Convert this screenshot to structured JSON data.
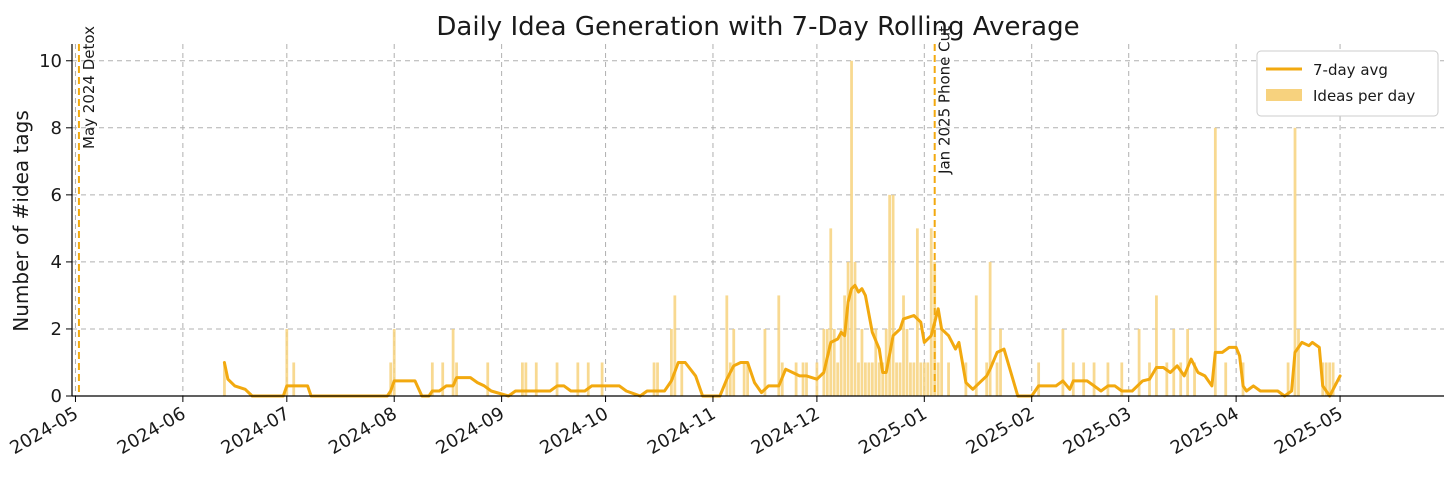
{
  "chart_data": {
    "type": "bar",
    "title": "Daily Idea Generation with 7-Day Rolling Average",
    "xlabel": "",
    "ylabel": "Number of #idea tags",
    "xlim": [
      "2024-04-30",
      "2025-05-31"
    ],
    "ylim": [
      0,
      10.5
    ],
    "yticks": [
      0,
      2,
      4,
      6,
      8,
      10
    ],
    "xticks": [
      "2024-05-01",
      "2024-06-01",
      "2024-07-01",
      "2024-08-01",
      "2024-09-01",
      "2024-10-01",
      "2024-11-01",
      "2024-12-01",
      "2025-01-01",
      "2025-02-01",
      "2025-03-01",
      "2025-04-01",
      "2025-05-01"
    ],
    "xtick_labels": [
      "2024-05",
      "2024-06",
      "2024-07",
      "2024-08",
      "2024-09",
      "2024-10",
      "2024-11",
      "2024-12",
      "2025-01",
      "2025-02",
      "2025-03",
      "2025-04",
      "2025-05"
    ],
    "grid": true,
    "legend_position": "top-right",
    "colors": {
      "avg_line": "#f2a90f",
      "bars": "#f7d27e",
      "vline": "#f2a90f"
    },
    "series": [
      {
        "name": "Ideas per day",
        "type": "bar",
        "points": [
          [
            "2024-06-13",
            1
          ],
          [
            "2024-07-01",
            2
          ],
          [
            "2024-07-03",
            1
          ],
          [
            "2024-07-31",
            1
          ],
          [
            "2024-08-01",
            2
          ],
          [
            "2024-08-12",
            1
          ],
          [
            "2024-08-15",
            1
          ],
          [
            "2024-08-18",
            2
          ],
          [
            "2024-08-19",
            1
          ],
          [
            "2024-08-28",
            1
          ],
          [
            "2024-09-07",
            1
          ],
          [
            "2024-09-08",
            1
          ],
          [
            "2024-09-11",
            1
          ],
          [
            "2024-09-17",
            1
          ],
          [
            "2024-09-23",
            1
          ],
          [
            "2024-09-26",
            1
          ],
          [
            "2024-09-30",
            1
          ],
          [
            "2024-10-15",
            1
          ],
          [
            "2024-10-16",
            1
          ],
          [
            "2024-10-20",
            2
          ],
          [
            "2024-10-21",
            3
          ],
          [
            "2024-10-23",
            1
          ],
          [
            "2024-11-05",
            3
          ],
          [
            "2024-11-06",
            1
          ],
          [
            "2024-11-07",
            2
          ],
          [
            "2024-11-10",
            1
          ],
          [
            "2024-11-11",
            1
          ],
          [
            "2024-11-16",
            2
          ],
          [
            "2024-11-20",
            3
          ],
          [
            "2024-11-21",
            1
          ],
          [
            "2024-11-25",
            1
          ],
          [
            "2024-11-27",
            1
          ],
          [
            "2024-11-28",
            1
          ],
          [
            "2024-12-01",
            1
          ],
          [
            "2024-12-03",
            2
          ],
          [
            "2024-12-04",
            2
          ],
          [
            "2024-12-05",
            5
          ],
          [
            "2024-12-06",
            2
          ],
          [
            "2024-12-07",
            1
          ],
          [
            "2024-12-08",
            2
          ],
          [
            "2024-12-09",
            3
          ],
          [
            "2024-12-10",
            4
          ],
          [
            "2024-12-11",
            10
          ],
          [
            "2024-12-12",
            4
          ],
          [
            "2024-12-13",
            1
          ],
          [
            "2024-12-14",
            2
          ],
          [
            "2024-12-15",
            1
          ],
          [
            "2024-12-16",
            1
          ],
          [
            "2024-12-17",
            1
          ],
          [
            "2024-12-18",
            2
          ],
          [
            "2024-12-19",
            1
          ],
          [
            "2024-12-20",
            1
          ],
          [
            "2024-12-21",
            2
          ],
          [
            "2024-12-22",
            6
          ],
          [
            "2024-12-23",
            6
          ],
          [
            "2024-12-24",
            1
          ],
          [
            "2024-12-25",
            1
          ],
          [
            "2024-12-26",
            3
          ],
          [
            "2024-12-27",
            2
          ],
          [
            "2024-12-28",
            1
          ],
          [
            "2024-12-29",
            1
          ],
          [
            "2024-12-30",
            5
          ],
          [
            "2024-12-31",
            1
          ],
          [
            "2025-01-01",
            1
          ],
          [
            "2025-01-02",
            1
          ],
          [
            "2025-01-03",
            5
          ],
          [
            "2025-01-04",
            4
          ],
          [
            "2025-01-05",
            1
          ],
          [
            "2025-01-06",
            2
          ],
          [
            "2025-01-08",
            1
          ],
          [
            "2025-01-13",
            1
          ],
          [
            "2025-01-16",
            3
          ],
          [
            "2025-01-19",
            1
          ],
          [
            "2025-01-20",
            4
          ],
          [
            "2025-01-22",
            1
          ],
          [
            "2025-01-23",
            2
          ],
          [
            "2025-02-03",
            1
          ],
          [
            "2025-02-10",
            2
          ],
          [
            "2025-02-13",
            1
          ],
          [
            "2025-02-16",
            1
          ],
          [
            "2025-02-19",
            1
          ],
          [
            "2025-02-23",
            1
          ],
          [
            "2025-02-27",
            1
          ],
          [
            "2025-03-04",
            2
          ],
          [
            "2025-03-07",
            1
          ],
          [
            "2025-03-09",
            3
          ],
          [
            "2025-03-12",
            1
          ],
          [
            "2025-03-14",
            2
          ],
          [
            "2025-03-16",
            1
          ],
          [
            "2025-03-18",
            2
          ],
          [
            "2025-03-20",
            1
          ],
          [
            "2025-03-26",
            8
          ],
          [
            "2025-03-29",
            1
          ],
          [
            "2025-04-03",
            1
          ],
          [
            "2025-04-16",
            1
          ],
          [
            "2025-04-18",
            8
          ],
          [
            "2025-04-19",
            2
          ],
          [
            "2025-04-26",
            1
          ],
          [
            "2025-04-27",
            1
          ],
          [
            "2025-04-28",
            1
          ],
          [
            "2025-04-29",
            1
          ]
        ]
      },
      {
        "name": "7-day avg",
        "type": "line",
        "points": [
          [
            "2024-06-13",
            1.0
          ],
          [
            "2024-06-14",
            0.5
          ],
          [
            "2024-06-16",
            0.3
          ],
          [
            "2024-06-19",
            0.2
          ],
          [
            "2024-06-21",
            0.0
          ],
          [
            "2024-06-30",
            0.0
          ],
          [
            "2024-07-01",
            0.3
          ],
          [
            "2024-07-07",
            0.3
          ],
          [
            "2024-07-08",
            0.0
          ],
          [
            "2024-07-30",
            0.0
          ],
          [
            "2024-07-31",
            0.15
          ],
          [
            "2024-08-01",
            0.45
          ],
          [
            "2024-08-07",
            0.45
          ],
          [
            "2024-08-09",
            0.0
          ],
          [
            "2024-08-11",
            0.0
          ],
          [
            "2024-08-12",
            0.15
          ],
          [
            "2024-08-14",
            0.15
          ],
          [
            "2024-08-16",
            0.3
          ],
          [
            "2024-08-18",
            0.3
          ],
          [
            "2024-08-19",
            0.55
          ],
          [
            "2024-08-23",
            0.55
          ],
          [
            "2024-08-25",
            0.4
          ],
          [
            "2024-08-27",
            0.3
          ],
          [
            "2024-08-29",
            0.15
          ],
          [
            "2024-09-03",
            0.0
          ],
          [
            "2024-09-05",
            0.15
          ],
          [
            "2024-09-15",
            0.15
          ],
          [
            "2024-09-17",
            0.3
          ],
          [
            "2024-09-19",
            0.3
          ],
          [
            "2024-09-21",
            0.15
          ],
          [
            "2024-09-25",
            0.15
          ],
          [
            "2024-09-27",
            0.3
          ],
          [
            "2024-10-05",
            0.3
          ],
          [
            "2024-10-07",
            0.15
          ],
          [
            "2024-10-11",
            0.0
          ],
          [
            "2024-10-13",
            0.15
          ],
          [
            "2024-10-18",
            0.15
          ],
          [
            "2024-10-20",
            0.45
          ],
          [
            "2024-10-22",
            1.0
          ],
          [
            "2024-10-24",
            1.0
          ],
          [
            "2024-10-27",
            0.6
          ],
          [
            "2024-10-29",
            0.0
          ],
          [
            "2024-11-03",
            0.0
          ],
          [
            "2024-11-05",
            0.5
          ],
          [
            "2024-11-07",
            0.9
          ],
          [
            "2024-11-09",
            1.0
          ],
          [
            "2024-11-11",
            1.0
          ],
          [
            "2024-11-13",
            0.4
          ],
          [
            "2024-11-15",
            0.1
          ],
          [
            "2024-11-17",
            0.3
          ],
          [
            "2024-11-20",
            0.3
          ],
          [
            "2024-11-22",
            0.8
          ],
          [
            "2024-11-24",
            0.7
          ],
          [
            "2024-11-26",
            0.6
          ],
          [
            "2024-11-28",
            0.6
          ],
          [
            "2024-12-01",
            0.5
          ],
          [
            "2024-12-03",
            0.7
          ],
          [
            "2024-12-05",
            1.6
          ],
          [
            "2024-12-07",
            1.7
          ],
          [
            "2024-12-08",
            1.9
          ],
          [
            "2024-12-09",
            1.8
          ],
          [
            "2024-12-10",
            2.8
          ],
          [
            "2024-12-11",
            3.2
          ],
          [
            "2024-12-12",
            3.3
          ],
          [
            "2024-12-13",
            3.1
          ],
          [
            "2024-12-14",
            3.2
          ],
          [
            "2024-12-15",
            3.0
          ],
          [
            "2024-12-17",
            1.9
          ],
          [
            "2024-12-19",
            1.4
          ],
          [
            "2024-12-20",
            0.7
          ],
          [
            "2024-12-21",
            0.7
          ],
          [
            "2024-12-23",
            1.8
          ],
          [
            "2024-12-25",
            2.0
          ],
          [
            "2024-12-26",
            2.3
          ],
          [
            "2024-12-29",
            2.4
          ],
          [
            "2024-12-31",
            2.2
          ],
          [
            "2025-01-01",
            1.6
          ],
          [
            "2025-01-03",
            1.8
          ],
          [
            "2025-01-05",
            2.6
          ],
          [
            "2025-01-06",
            2.0
          ],
          [
            "2025-01-08",
            1.8
          ],
          [
            "2025-01-10",
            1.4
          ],
          [
            "2025-01-11",
            1.6
          ],
          [
            "2025-01-13",
            0.4
          ],
          [
            "2025-01-15",
            0.2
          ],
          [
            "2025-01-17",
            0.4
          ],
          [
            "2025-01-19",
            0.6
          ],
          [
            "2025-01-20",
            0.8
          ],
          [
            "2025-01-22",
            1.3
          ],
          [
            "2025-01-24",
            1.4
          ],
          [
            "2025-01-26",
            0.7
          ],
          [
            "2025-01-28",
            0.0
          ],
          [
            "2025-02-01",
            0.0
          ],
          [
            "2025-02-03",
            0.3
          ],
          [
            "2025-02-08",
            0.3
          ],
          [
            "2025-02-10",
            0.45
          ],
          [
            "2025-02-12",
            0.2
          ],
          [
            "2025-02-13",
            0.45
          ],
          [
            "2025-02-17",
            0.45
          ],
          [
            "2025-02-19",
            0.3
          ],
          [
            "2025-02-21",
            0.15
          ],
          [
            "2025-02-23",
            0.3
          ],
          [
            "2025-02-25",
            0.3
          ],
          [
            "2025-02-27",
            0.15
          ],
          [
            "2025-03-02",
            0.15
          ],
          [
            "2025-03-05",
            0.45
          ],
          [
            "2025-03-07",
            0.5
          ],
          [
            "2025-03-09",
            0.85
          ],
          [
            "2025-03-11",
            0.85
          ],
          [
            "2025-03-13",
            0.7
          ],
          [
            "2025-03-15",
            0.9
          ],
          [
            "2025-03-17",
            0.6
          ],
          [
            "2025-03-19",
            1.1
          ],
          [
            "2025-03-21",
            0.7
          ],
          [
            "2025-03-23",
            0.6
          ],
          [
            "2025-03-25",
            0.3
          ],
          [
            "2025-03-26",
            1.3
          ],
          [
            "2025-03-28",
            1.3
          ],
          [
            "2025-03-30",
            1.45
          ],
          [
            "2025-04-01",
            1.45
          ],
          [
            "2025-04-02",
            1.2
          ],
          [
            "2025-04-03",
            0.3
          ],
          [
            "2025-04-04",
            0.15
          ],
          [
            "2025-04-06",
            0.3
          ],
          [
            "2025-04-08",
            0.15
          ],
          [
            "2025-04-13",
            0.15
          ],
          [
            "2025-04-15",
            0.0
          ],
          [
            "2025-04-17",
            0.15
          ],
          [
            "2025-04-18",
            1.3
          ],
          [
            "2025-04-20",
            1.6
          ],
          [
            "2025-04-22",
            1.5
          ],
          [
            "2025-04-23",
            1.6
          ],
          [
            "2025-04-25",
            1.45
          ],
          [
            "2025-04-26",
            0.3
          ],
          [
            "2025-04-28",
            0.0
          ],
          [
            "2025-05-01",
            0.6
          ]
        ]
      }
    ],
    "events": [
      {
        "date": "2024-05-02",
        "label": "May 2024 Detox"
      },
      {
        "date": "2025-01-04",
        "label": "Jan 2025 Phone Cut"
      }
    ]
  }
}
